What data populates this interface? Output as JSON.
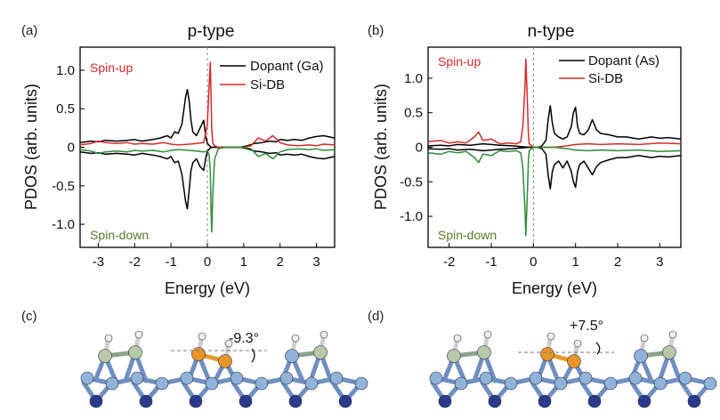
{
  "panels": [
    {
      "label": "(a)",
      "title": "p-type",
      "ylabel": "PDOS (arb. units)",
      "xlabel": "Energy (eV)",
      "spin_up_label": "Spin-up",
      "spin_down_label": "Spin-down",
      "legend": [
        "Dopant (Ga)",
        "Si-DB"
      ]
    },
    {
      "label": "(b)",
      "title": "n-type",
      "ylabel": "PDOS (arb. units)",
      "xlabel": "Energy (eV)",
      "spin_up_label": "Spin-up",
      "spin_down_label": "Spin-down",
      "legend": [
        "Dopant (As)",
        "Si-DB"
      ]
    }
  ],
  "structures": [
    {
      "label": "(c)",
      "angle": "-9.3°"
    },
    {
      "label": "(d)",
      "angle": "+7.5°"
    }
  ],
  "colors": {
    "dopant": "#000000",
    "si_db_up": "#d42a2a",
    "si_db_down": "#2e8b3a",
    "spin_up_text": "#d42a2a",
    "spin_down_text": "#5a7a2a",
    "atom_light": "#8fb3d9",
    "atom_dark": "#2b3a8c",
    "atom_green": "#b7c9a8",
    "atom_orange": "#e8962a",
    "atom_h": "#eeeeee"
  },
  "chart_data": [
    {
      "type": "line",
      "title": "p-type",
      "xlabel": "Energy (eV)",
      "ylabel": "PDOS (arb. units)",
      "xlim": [
        -3.5,
        3.5
      ],
      "ylim": [
        -1.3,
        1.3
      ],
      "xticks": [
        -3,
        -2,
        -1,
        0,
        1,
        2,
        3
      ],
      "yticks": [
        -1.0,
        -0.5,
        0,
        0.5,
        1.0
      ],
      "ytick_labels": [
        "-1.0",
        "-0.5",
        "0",
        "0.5",
        "1.0"
      ],
      "legend_position": "top-right",
      "fermi_line": 0,
      "series": [
        {
          "name": "Dopant (Ga)",
          "x": [
            -3.5,
            -3.2,
            -3.0,
            -2.8,
            -2.5,
            -2.2,
            -2.0,
            -1.8,
            -1.5,
            -1.3,
            -1.1,
            -1.0,
            -0.9,
            -0.8,
            -0.7,
            -0.6,
            -0.55,
            -0.5,
            -0.45,
            -0.4,
            -0.3,
            -0.2,
            -0.1,
            -0.05,
            0.0,
            0.1,
            0.3,
            0.6,
            0.9,
            1.1,
            1.3,
            1.5,
            1.7,
            1.9,
            2.0,
            2.2,
            2.4,
            2.6,
            2.8,
            3.0,
            3.2,
            3.5
          ],
          "up": [
            0.06,
            0.08,
            0.07,
            0.09,
            0.08,
            0.09,
            0.1,
            0.08,
            0.1,
            0.12,
            0.15,
            0.12,
            0.2,
            0.18,
            0.3,
            0.65,
            0.75,
            0.6,
            0.35,
            0.2,
            0.15,
            0.25,
            0.35,
            0.15,
            0.05,
            0.0,
            0.0,
            0.0,
            0.0,
            0.02,
            0.05,
            0.06,
            0.08,
            0.07,
            0.1,
            0.09,
            0.1,
            0.09,
            0.12,
            0.14,
            0.15,
            0.12
          ],
          "down": [
            -0.06,
            -0.08,
            -0.07,
            -0.09,
            -0.08,
            -0.09,
            -0.1,
            -0.08,
            -0.1,
            -0.12,
            -0.15,
            -0.12,
            -0.2,
            -0.18,
            -0.35,
            -0.7,
            -0.8,
            -0.55,
            -0.3,
            -0.2,
            -0.15,
            -0.25,
            -0.3,
            -0.15,
            -0.05,
            0.0,
            0.0,
            0.0,
            0.0,
            -0.02,
            -0.05,
            -0.06,
            -0.08,
            -0.07,
            -0.1,
            -0.09,
            -0.1,
            -0.09,
            -0.12,
            -0.14,
            -0.15,
            -0.12
          ]
        },
        {
          "name": "Si-DB",
          "x": [
            -3.5,
            -3.2,
            -3.0,
            -2.8,
            -2.5,
            -2.2,
            -2.0,
            -1.8,
            -1.5,
            -1.2,
            -1.0,
            -0.8,
            -0.5,
            -0.3,
            -0.1,
            0.0,
            0.05,
            0.08,
            0.1,
            0.12,
            0.15,
            0.2,
            0.3,
            0.5,
            0.8,
            1.0,
            1.2,
            1.4,
            1.6,
            1.8,
            2.0,
            2.2,
            2.5,
            2.8,
            3.0,
            3.2,
            3.5
          ],
          "up": [
            0.03,
            0.05,
            0.08,
            0.06,
            0.05,
            0.06,
            0.04,
            0.05,
            0.04,
            0.06,
            0.04,
            0.03,
            0.04,
            0.05,
            0.06,
            0.3,
            0.8,
            1.1,
            0.7,
            0.25,
            0.05,
            0.02,
            0.0,
            0.0,
            0.0,
            0.0,
            0.02,
            0.12,
            0.08,
            0.15,
            0.06,
            0.03,
            0.02,
            0.03,
            0.02,
            0.04,
            0.03
          ],
          "down": [
            -0.03,
            -0.05,
            -0.08,
            -0.06,
            -0.05,
            -0.06,
            -0.04,
            -0.05,
            -0.04,
            -0.06,
            -0.04,
            -0.03,
            -0.04,
            -0.05,
            -0.06,
            -0.05,
            -0.1,
            -0.3,
            -0.8,
            -1.1,
            -0.6,
            -0.15,
            -0.02,
            0.0,
            0.0,
            0.0,
            -0.02,
            -0.12,
            -0.08,
            -0.15,
            -0.06,
            -0.03,
            -0.02,
            -0.03,
            -0.02,
            -0.04,
            -0.03
          ]
        }
      ]
    },
    {
      "type": "line",
      "title": "n-type",
      "xlabel": "Energy (eV)",
      "ylabel": "PDOS (arb. units)",
      "xlim": [
        -2.5,
        3.5
      ],
      "ylim": [
        -1.45,
        1.45
      ],
      "xticks": [
        -2,
        -1,
        0,
        1,
        2,
        3
      ],
      "yticks": [
        -1.0,
        -0.5,
        0,
        0.5,
        1.0
      ],
      "ytick_labels": [
        "-1.0",
        "-0.5",
        "0",
        "0.5",
        "1.0"
      ],
      "legend_position": "top-right",
      "fermi_line": 0,
      "series": [
        {
          "name": "Dopant (As)",
          "x": [
            -2.5,
            -2.2,
            -2.0,
            -1.8,
            -1.5,
            -1.2,
            -1.0,
            -0.8,
            -0.5,
            -0.3,
            -0.1,
            0.0,
            0.1,
            0.2,
            0.3,
            0.35,
            0.4,
            0.45,
            0.5,
            0.6,
            0.7,
            0.8,
            0.9,
            0.95,
            1.0,
            1.05,
            1.1,
            1.2,
            1.3,
            1.4,
            1.5,
            1.6,
            1.8,
            2.0,
            2.2,
            2.5,
            2.8,
            3.0,
            3.2,
            3.5
          ],
          "up": [
            0.02,
            0.03,
            0.02,
            0.04,
            0.03,
            0.05,
            0.04,
            0.03,
            0.02,
            0.01,
            0.0,
            0.0,
            0.0,
            0.02,
            0.1,
            0.4,
            0.6,
            0.35,
            0.2,
            0.15,
            0.12,
            0.15,
            0.3,
            0.5,
            0.58,
            0.3,
            0.2,
            0.18,
            0.25,
            0.4,
            0.25,
            0.2,
            0.18,
            0.15,
            0.15,
            0.12,
            0.15,
            0.13,
            0.14,
            0.12
          ],
          "down": [
            -0.02,
            -0.03,
            -0.02,
            -0.04,
            -0.03,
            -0.05,
            -0.04,
            -0.03,
            -0.02,
            -0.01,
            0.0,
            0.0,
            0.0,
            -0.02,
            -0.1,
            -0.4,
            -0.6,
            -0.35,
            -0.25,
            -0.2,
            -0.3,
            -0.2,
            -0.35,
            -0.5,
            -0.58,
            -0.35,
            -0.25,
            -0.2,
            -0.3,
            -0.4,
            -0.28,
            -0.22,
            -0.18,
            -0.15,
            -0.15,
            -0.12,
            -0.15,
            -0.13,
            -0.14,
            -0.12
          ]
        },
        {
          "name": "Si-DB",
          "x": [
            -2.5,
            -2.2,
            -2.0,
            -1.8,
            -1.6,
            -1.4,
            -1.3,
            -1.2,
            -1.0,
            -0.8,
            -0.6,
            -0.4,
            -0.3,
            -0.25,
            -0.2,
            -0.18,
            -0.15,
            -0.12,
            -0.1,
            0.0,
            0.2,
            0.5,
            0.8,
            1.0,
            1.3,
            1.6,
            2.0,
            2.5,
            3.0,
            3.5
          ],
          "up": [
            0.08,
            0.1,
            0.06,
            0.08,
            0.06,
            0.15,
            0.22,
            0.1,
            0.12,
            0.05,
            0.06,
            0.05,
            0.08,
            0.3,
            0.9,
            1.28,
            0.8,
            0.2,
            0.05,
            0.0,
            0.0,
            0.0,
            0.02,
            0.04,
            0.05,
            0.04,
            0.05,
            0.04,
            0.06,
            0.05
          ],
          "down": [
            -0.08,
            -0.1,
            -0.06,
            -0.08,
            -0.06,
            -0.15,
            -0.22,
            -0.1,
            -0.12,
            -0.05,
            -0.06,
            -0.05,
            -0.08,
            -0.3,
            -0.9,
            -1.28,
            -0.8,
            -0.2,
            -0.05,
            0.0,
            0.0,
            0.0,
            -0.02,
            -0.04,
            -0.05,
            -0.04,
            -0.05,
            -0.04,
            -0.06,
            -0.05
          ]
        }
      ]
    }
  ]
}
